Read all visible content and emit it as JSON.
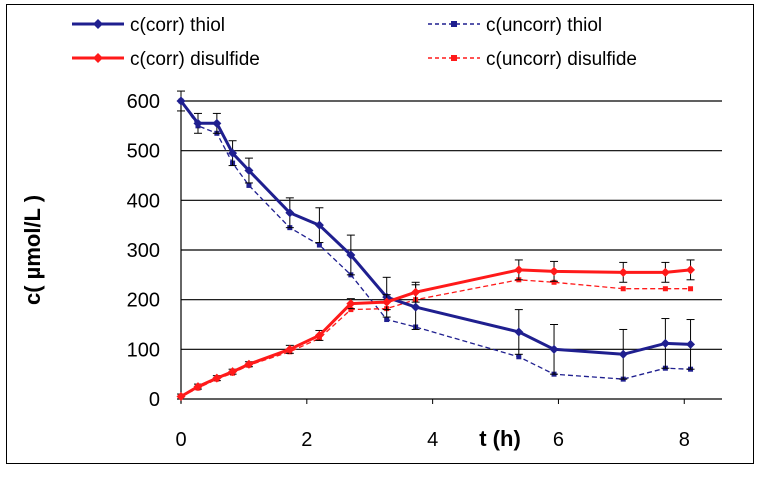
{
  "chart_data": {
    "type": "line",
    "xlabel": "t (h)",
    "ylabel": "c( µmol/L )",
    "xlim": [
      0,
      8.6
    ],
    "ylim": [
      0,
      600
    ],
    "x_ticks": [
      "0",
      "2",
      "4",
      "6",
      "8"
    ],
    "y_ticks": [
      "0",
      "100",
      "200",
      "300",
      "400",
      "500",
      "600"
    ],
    "grid": "horizontal",
    "legend_position": "top",
    "series": [
      {
        "name": "c(corr) thiol",
        "color": "#1f1f8f",
        "style": "solid",
        "marker": "diamond",
        "x": [
          0,
          0.27,
          0.57,
          0.82,
          1.08,
          1.73,
          2.2,
          2.7,
          3.27,
          3.73,
          5.37,
          5.93,
          7.03,
          7.7,
          8.1
        ],
        "y": [
          600,
          555,
          555,
          495,
          460,
          375,
          350,
          290,
          205,
          185,
          135,
          100,
          90,
          112,
          110
        ],
        "error": [
          20,
          20,
          20,
          25,
          25,
          30,
          35,
          40,
          40,
          45,
          45,
          50,
          50,
          50,
          50
        ]
      },
      {
        "name": "c(uncorr) thiol",
        "color": "#1f1f8f",
        "style": "dashed",
        "marker": "square",
        "x": [
          0,
          0.27,
          0.57,
          0.82,
          1.08,
          1.73,
          2.2,
          2.7,
          3.27,
          3.73,
          5.37,
          5.93,
          7.03,
          7.7,
          8.1
        ],
        "y": [
          600,
          550,
          535,
          475,
          430,
          345,
          310,
          250,
          160,
          145,
          85,
          50,
          40,
          62,
          60
        ]
      },
      {
        "name": "c(corr) disulfide",
        "color": "#ff1a1a",
        "style": "solid",
        "marker": "diamond",
        "x": [
          0,
          0.27,
          0.57,
          0.82,
          1.08,
          1.73,
          2.2,
          2.7,
          3.27,
          3.73,
          5.37,
          5.93,
          7.03,
          7.7,
          8.1
        ],
        "y": [
          5,
          25,
          42,
          55,
          70,
          100,
          128,
          192,
          195,
          215,
          260,
          257,
          255,
          255,
          260
        ],
        "error": [
          5,
          5,
          5,
          5,
          5,
          8,
          10,
          10,
          15,
          20,
          20,
          20,
          20,
          20,
          20
        ]
      },
      {
        "name": "c(uncorr) disulfide",
        "color": "#ff1a1a",
        "style": "dashed",
        "marker": "square",
        "x": [
          0,
          0.27,
          0.57,
          0.82,
          1.08,
          1.73,
          2.2,
          2.7,
          3.27,
          3.73,
          5.37,
          5.93,
          7.03,
          7.7,
          8.1
        ],
        "y": [
          5,
          22,
          40,
          52,
          68,
          95,
          122,
          180,
          182,
          200,
          240,
          235,
          222,
          222,
          222
        ]
      }
    ]
  }
}
